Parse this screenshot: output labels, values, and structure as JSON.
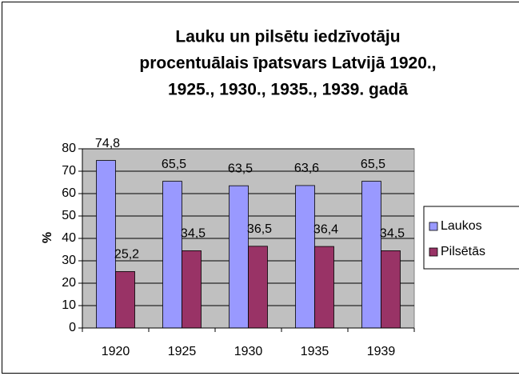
{
  "chart_data": {
    "type": "bar",
    "title": [
      "Lauku un pilsētu iedzīvotāju",
      "procentuālais īpatsvars Latvijā 1920.,",
      "1925., 1930., 1935., 1939. gadā"
    ],
    "y_label": "%",
    "categories": [
      "1920",
      "1925",
      "1930",
      "1935",
      "1939"
    ],
    "series": [
      {
        "name": "Laukos",
        "color": "#9999ff",
        "values": [
          74.8,
          65.5,
          63.5,
          63.6,
          65.5
        ],
        "value_labels": [
          "74,8",
          "65,5",
          "63,5",
          "63,6",
          "65,5"
        ]
      },
      {
        "name": "Pilsētās",
        "color": "#993366",
        "values": [
          25.2,
          34.5,
          36.5,
          36.4,
          34.5
        ],
        "value_labels": [
          "25,2",
          "34,5",
          "36,5",
          "36,4",
          "34,5"
        ]
      }
    ],
    "ylim": [
      0,
      80
    ],
    "yticks": [
      0,
      10,
      20,
      30,
      40,
      50,
      60,
      70,
      80
    ],
    "grid": true,
    "legend": "right",
    "plot_background": "#c0c0c0"
  }
}
